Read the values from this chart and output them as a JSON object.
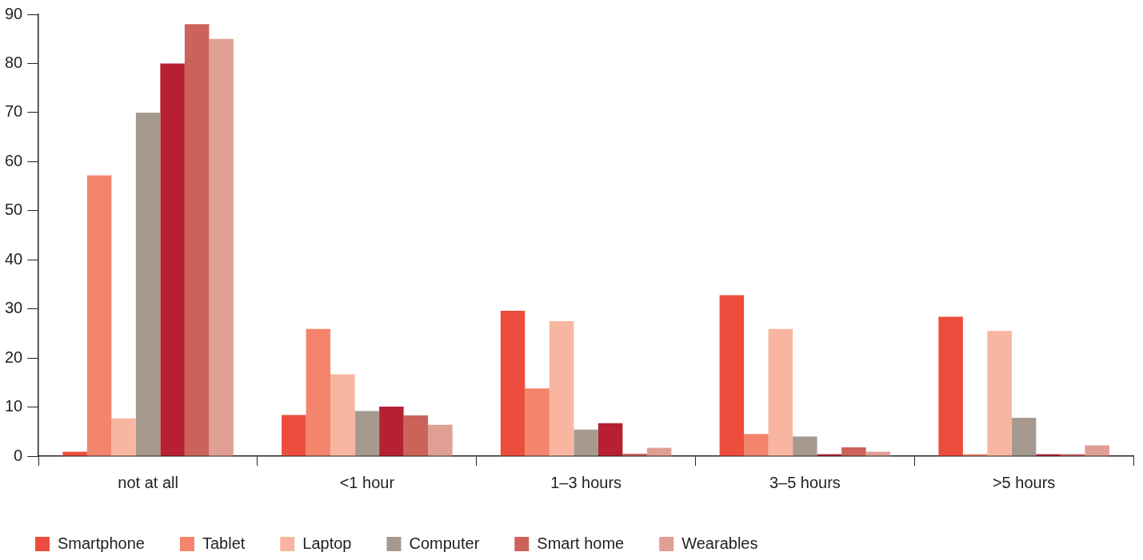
{
  "chart_data": {
    "type": "bar",
    "categories": [
      "not at all",
      "<1 hour",
      "1–3 hours",
      "3–5 hours",
      ">5 hours"
    ],
    "series": [
      {
        "name": "Smartphone",
        "color": "#ec4d3c",
        "values": [
          0.9,
          8.4,
          29.6,
          32.8,
          28.4
        ]
      },
      {
        "name": "Tablet",
        "color": "#f4846b",
        "values": [
          57.2,
          25.9,
          13.8,
          4.5,
          0.4
        ]
      },
      {
        "name": "Laptop",
        "color": "#f8b5a0",
        "values": [
          7.7,
          16.7,
          27.5,
          25.9,
          25.5
        ]
      },
      {
        "name": "Computer",
        "color": "#a69a8f",
        "values": [
          70,
          9.2,
          5.4,
          4,
          7.8
        ]
      },
      {
        "color": "#b71f32",
        "values": [
          80,
          10.1,
          6.7,
          0.4,
          0.4
        ]
      },
      {
        "name": "Smart home",
        "color": "#cb635a",
        "values": [
          88,
          8.3,
          0.5,
          1.8,
          0.4
        ]
      },
      {
        "name": "Wearables",
        "color": "#e09f93",
        "values": [
          85,
          6.4,
          1.7,
          0.9,
          2.2
        ]
      }
    ],
    "ylim": [
      0,
      90
    ],
    "yticks": [
      0,
      10,
      20,
      30,
      40,
      50,
      60,
      70,
      80,
      90
    ],
    "grid": false,
    "legend": "bottom"
  }
}
